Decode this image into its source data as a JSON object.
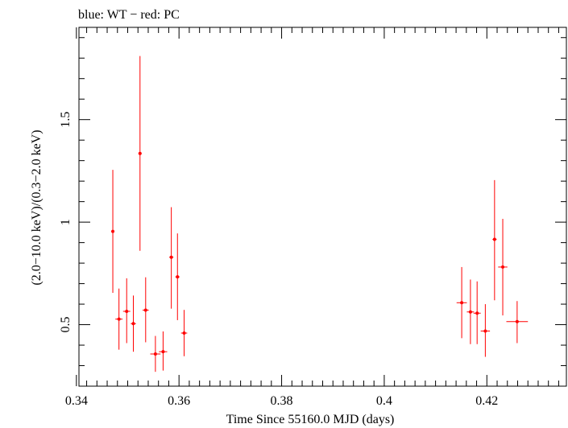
{
  "chart_data": {
    "type": "scatter",
    "title": "blue: WT − red: PC",
    "xlabel": "Time Since 55160.0 MJD (days)",
    "ylabel": "(2.0−10.0 keV)/(0.3−2.0 keV)",
    "xlim": [
      0.3405,
      0.4355
    ],
    "ylim": [
      0.2,
      1.95
    ],
    "x_ticks": [
      0.34,
      0.36,
      0.38,
      0.4,
      0.42
    ],
    "x_tick_labels": [
      "0.34",
      "0.36",
      "0.38",
      "0.4",
      "0.42"
    ],
    "y_ticks": [
      0.5,
      1.0,
      1.5
    ],
    "y_tick_labels": [
      "0.5",
      "1",
      "1.5"
    ],
    "series": [
      {
        "name": "PC",
        "color": "#ff0000",
        "points": [
          {
            "x": 0.3471,
            "y": 0.955,
            "xerr": 0.0003,
            "ylo": 0.655,
            "yhi": 1.255
          },
          {
            "x": 0.3483,
            "y": 0.527,
            "xerr": 0.0007,
            "ylo": 0.378,
            "yhi": 0.676
          },
          {
            "x": 0.3498,
            "y": 0.565,
            "xerr": 0.0007,
            "ylo": 0.41,
            "yhi": 0.726
          },
          {
            "x": 0.3511,
            "y": 0.505,
            "xerr": 0.0005,
            "ylo": 0.368,
            "yhi": 0.642
          },
          {
            "x": 0.3524,
            "y": 1.335,
            "xerr": 0.0003,
            "ylo": 0.86,
            "yhi": 1.81
          },
          {
            "x": 0.3535,
            "y": 0.571,
            "xerr": 0.0006,
            "ylo": 0.414,
            "yhi": 0.731
          },
          {
            "x": 0.3554,
            "y": 0.357,
            "xerr": 0.001,
            "ylo": 0.27,
            "yhi": 0.445
          },
          {
            "x": 0.3569,
            "y": 0.368,
            "xerr": 0.0008,
            "ylo": 0.276,
            "yhi": 0.467
          },
          {
            "x": 0.3585,
            "y": 0.829,
            "xerr": 0.0004,
            "ylo": 0.578,
            "yhi": 1.073
          },
          {
            "x": 0.3597,
            "y": 0.733,
            "xerr": 0.0004,
            "ylo": 0.522,
            "yhi": 0.945
          },
          {
            "x": 0.361,
            "y": 0.459,
            "xerr": 0.0006,
            "ylo": 0.346,
            "yhi": 0.572
          },
          {
            "x": 0.4151,
            "y": 0.607,
            "xerr": 0.001,
            "ylo": 0.434,
            "yhi": 0.781
          },
          {
            "x": 0.4168,
            "y": 0.562,
            "xerr": 0.0007,
            "ylo": 0.405,
            "yhi": 0.72
          },
          {
            "x": 0.4181,
            "y": 0.556,
            "xerr": 0.0007,
            "ylo": 0.405,
            "yhi": 0.711
          },
          {
            "x": 0.4197,
            "y": 0.469,
            "xerr": 0.0009,
            "ylo": 0.343,
            "yhi": 0.6
          },
          {
            "x": 0.4215,
            "y": 0.916,
            "xerr": 0.0004,
            "ylo": 0.619,
            "yhi": 1.205
          },
          {
            "x": 0.4231,
            "y": 0.781,
            "xerr": 0.0009,
            "ylo": 0.545,
            "yhi": 1.016
          },
          {
            "x": 0.4259,
            "y": 0.515,
            "xerr": 0.0021,
            "ylo": 0.41,
            "yhi": 0.615
          }
        ]
      }
    ]
  }
}
